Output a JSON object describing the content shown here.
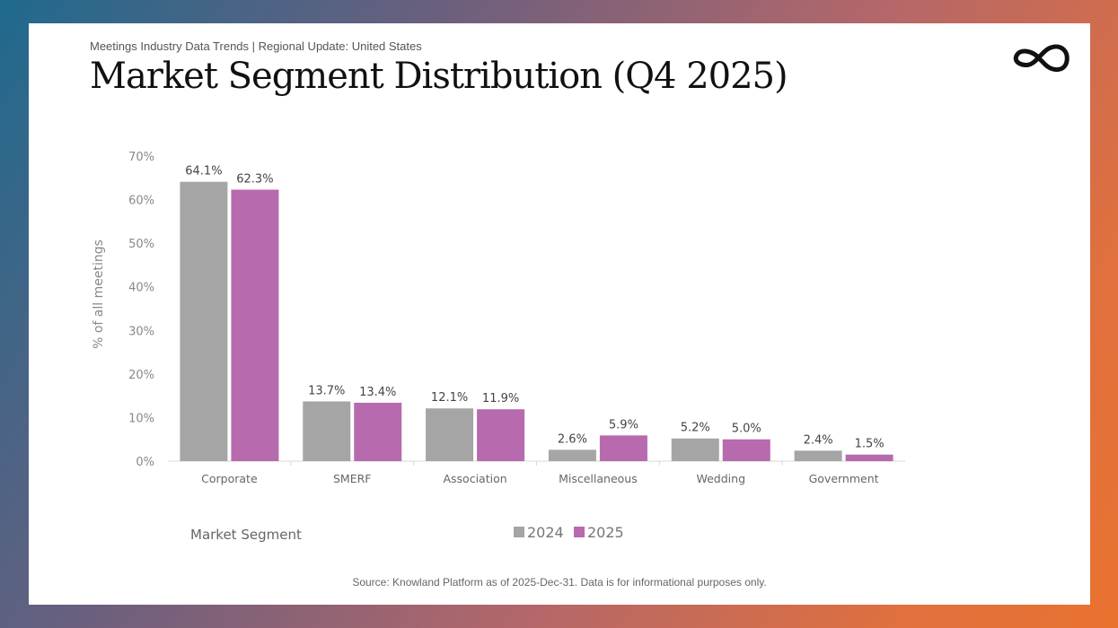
{
  "header": {
    "subtitle": "Meetings Industry Data Trends | Regional Update: United States",
    "title": "Market Segment Distribution (Q4 2025)",
    "logo_icon": "infinity-logo"
  },
  "footer": {
    "source": "Source: Knowland Platform as of 2025-Dec-31. Data is for informational purposes only."
  },
  "chart_data": {
    "type": "bar",
    "categories": [
      "Corporate",
      "SMERF",
      "Association",
      "Miscellaneous",
      "Wedding",
      "Government"
    ],
    "series": [
      {
        "name": "2024",
        "color": "#a5a5a5",
        "values": [
          64.1,
          13.7,
          12.1,
          2.6,
          5.2,
          2.4
        ],
        "labels": [
          "64.1%",
          "13.7%",
          "12.1%",
          "2.6%",
          "5.2%",
          "2.4%"
        ]
      },
      {
        "name": "2025",
        "color": "#b76aad",
        "values": [
          62.3,
          13.4,
          11.9,
          5.9,
          5.0,
          1.5
        ],
        "labels": [
          "62.3%",
          "13.4%",
          "11.9%",
          "5.9%",
          "5.0%",
          "1.5%"
        ]
      }
    ],
    "xlabel": "Market Segment",
    "ylabel": "% of all meetings",
    "ylim": [
      0,
      70
    ],
    "yticks": [
      "0%",
      "10%",
      "20%",
      "30%",
      "40%",
      "50%",
      "60%",
      "70%"
    ],
    "grid": false,
    "legend": "bottom"
  }
}
